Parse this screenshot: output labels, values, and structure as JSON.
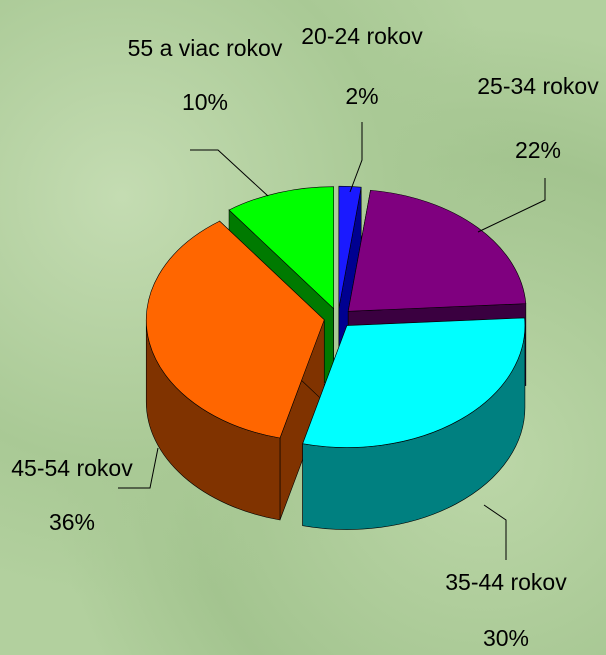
{
  "chart_data": {
    "type": "pie3d",
    "categories": [
      "20-24 rokov",
      "25-34 rokov",
      "35-44 rokov",
      "45-54 rokov",
      "55 a viac rokov"
    ],
    "values": [
      2,
      22,
      30,
      36,
      10
    ],
    "value_labels": [
      "2%",
      "22%",
      "30%",
      "36%",
      "10%"
    ],
    "colors": [
      "#1a1aff",
      "#7f007f",
      "#00ffff",
      "#ff6600",
      "#00ff00"
    ],
    "side_colors": [
      "#000090",
      "#3a0040",
      "#008080",
      "#803300",
      "#007a00"
    ]
  }
}
